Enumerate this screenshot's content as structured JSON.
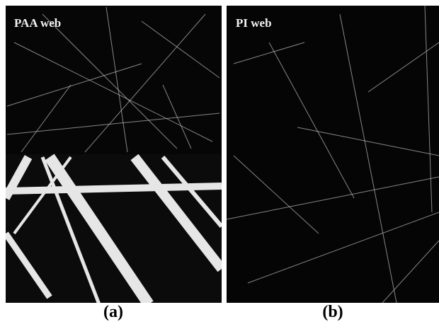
{
  "panels": [
    {
      "title": "PAA web",
      "caption": "(a)"
    },
    {
      "title": "PI web",
      "caption": "(b)"
    }
  ]
}
